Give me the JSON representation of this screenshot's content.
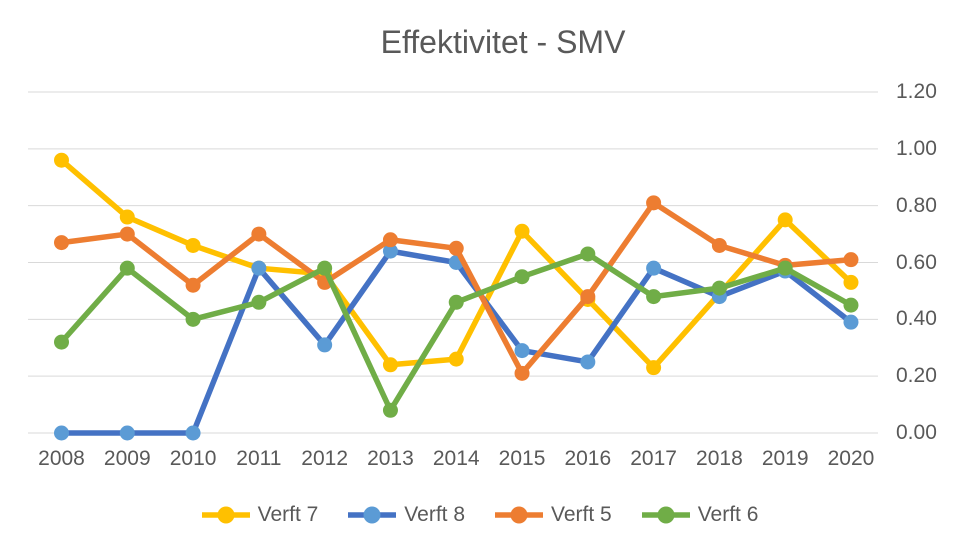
{
  "chart_data": {
    "type": "line",
    "title": "Effektivitet - SMV",
    "categories": [
      "2008",
      "2009",
      "2010",
      "2011",
      "2012",
      "2013",
      "2014",
      "2015",
      "2016",
      "2017",
      "2018",
      "2019",
      "2020"
    ],
    "series": [
      {
        "name": "Verft 7",
        "line_color": "#FFC000",
        "marker_color": "#FFC000",
        "values": [
          0.96,
          0.76,
          0.66,
          0.58,
          0.56,
          0.24,
          0.26,
          0.71,
          0.47,
          0.23,
          0.49,
          0.75,
          0.53
        ]
      },
      {
        "name": "Verft 8",
        "line_color": "#4472C4",
        "marker_color": "#5B9BD5",
        "values": [
          0.0,
          0.0,
          0.0,
          0.58,
          0.31,
          0.64,
          0.6,
          0.29,
          0.25,
          0.58,
          0.48,
          0.57,
          0.39
        ]
      },
      {
        "name": "Verft 5",
        "line_color": "#ED7D31",
        "marker_color": "#ED7D31",
        "values": [
          0.67,
          0.7,
          0.52,
          0.7,
          0.53,
          0.68,
          0.65,
          0.21,
          0.48,
          0.81,
          0.66,
          0.59,
          0.61
        ]
      },
      {
        "name": "Verft 6",
        "line_color": "#70AD47",
        "marker_color": "#70AD47",
        "values": [
          0.32,
          0.58,
          0.4,
          0.46,
          0.58,
          0.08,
          0.46,
          0.55,
          0.63,
          0.48,
          0.51,
          0.58,
          0.45
        ]
      }
    ],
    "xlabel": "",
    "ylabel": "",
    "ylim": [
      0.0,
      1.2
    ],
    "yticks": [
      "0.00",
      "0.20",
      "0.40",
      "0.60",
      "0.80",
      "1.00",
      "1.20"
    ],
    "grid": true,
    "gridline_color": "#D9D9D9",
    "text_color": "#595959",
    "legend_position": "bottom",
    "y_axis_side": "right"
  }
}
